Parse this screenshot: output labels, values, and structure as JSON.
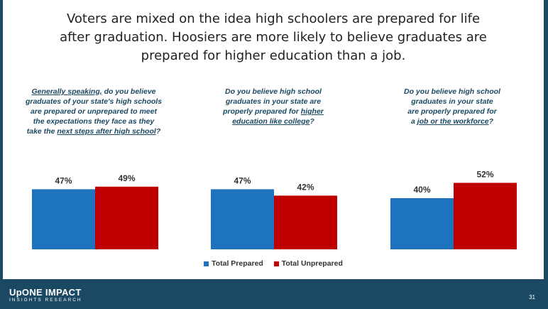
{
  "headline": {
    "line1": "Voters are mixed on the idea high schoolers are prepared for life",
    "line2": "after graduation. Hoosiers are more likely to believe graduates are",
    "line3": "prepared for higher education than a job."
  },
  "questions": [
    {
      "lines": [
        [
          {
            "t": "Generally speaking,",
            "u": true
          },
          {
            "t": " do you believe",
            "u": false
          }
        ],
        [
          {
            "t": "graduates of your state's high schools",
            "u": false
          }
        ],
        [
          {
            "t": "are prepared or unprepared to meet",
            "u": false
          }
        ],
        [
          {
            "t": "the expectations they face as they",
            "u": false
          }
        ],
        [
          {
            "t": "take the ",
            "u": false
          },
          {
            "t": "next steps after high school",
            "u": true
          },
          {
            "t": "?",
            "u": false
          }
        ]
      ]
    },
    {
      "lines": [
        [
          {
            "t": "Do you believe high school",
            "u": false
          }
        ],
        [
          {
            "t": "graduates in your state are",
            "u": false
          }
        ],
        [
          {
            "t": "properly prepared for ",
            "u": false
          },
          {
            "t": "higher",
            "u": true
          }
        ],
        [
          {
            "t": "education like college",
            "u": true
          },
          {
            "t": "?",
            "u": false
          }
        ]
      ]
    },
    {
      "lines": [
        [
          {
            "t": "Do you believe high school",
            "u": false
          }
        ],
        [
          {
            "t": "graduates in your state",
            "u": false
          }
        ],
        [
          {
            "t": "are properly prepared for",
            "u": false
          }
        ],
        [
          {
            "t": "a ",
            "u": false
          },
          {
            "t": "job or the workforce",
            "u": true
          },
          {
            "t": "?",
            "u": false
          }
        ]
      ]
    }
  ],
  "chart_data": {
    "type": "bar",
    "categories": [
      "Next steps after high school",
      "Higher education like college",
      "Job or the workforce"
    ],
    "series": [
      {
        "name": "Total Prepared",
        "values": [
          47,
          47,
          40
        ],
        "labels": [
          "47%",
          "47%",
          "40%"
        ],
        "color": "#1e73be"
      },
      {
        "name": "Total Unprepared",
        "values": [
          49,
          42,
          52
        ],
        "labels": [
          "49%",
          "42%",
          "52%"
        ],
        "color": "#c00000"
      }
    ],
    "value_format": "percent",
    "legend": "bottom-center",
    "grid": false
  },
  "legend": {
    "prepared": "Total Prepared",
    "unprepared": "Total Unprepared"
  },
  "footer": {
    "logo_main": "UpONE IMPACT",
    "logo_sub": "INSIGHTS RESEARCH",
    "page_number": "31"
  },
  "colors": {
    "navy": "#1b4963",
    "prepared": "#1e73be",
    "unprepared": "#c00000"
  }
}
